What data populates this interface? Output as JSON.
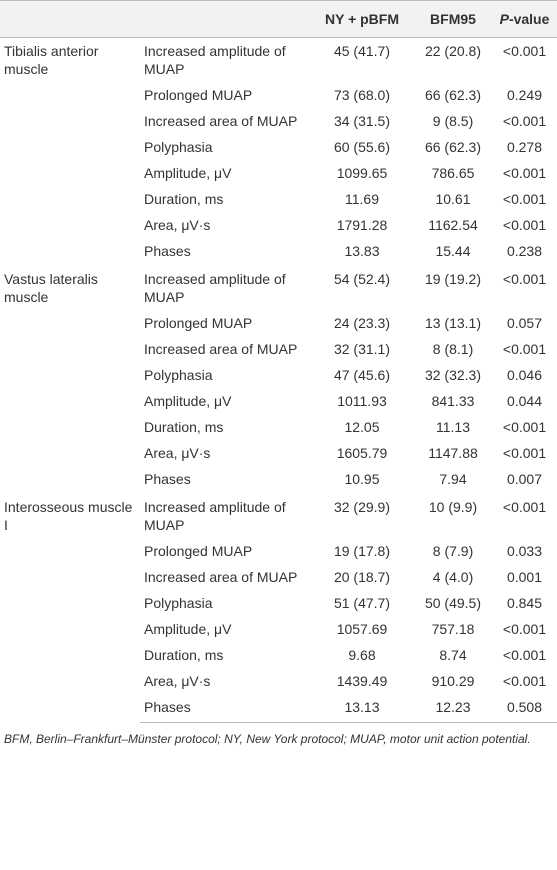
{
  "table": {
    "header": [
      "NY + pBFM",
      "BFM95"
    ],
    "header_p": [
      "P",
      "-value"
    ],
    "groups": [
      {
        "name": "Tibialis anterior muscle",
        "rows": [
          [
            "Increased amplitude of MUAP",
            "45 (41.7)",
            "22 (20.8)",
            "<0.001"
          ],
          [
            "Prolonged MUAP",
            "73 (68.0)",
            "66 (62.3)",
            "0.249"
          ],
          [
            "Increased area of MUAP",
            "34 (31.5)",
            "9 (8.5)",
            "<0.001"
          ],
          [
            "Polyphasia",
            "60 (55.6)",
            "66 (62.3)",
            "0.278"
          ],
          [
            "Amplitude, μV",
            "1099.65",
            "786.65",
            "<0.001"
          ],
          [
            "Duration, ms",
            "11.69",
            "10.61",
            "<0.001"
          ],
          [
            "Area, μV·s",
            "1791.28",
            "1162.54",
            "<0.001"
          ],
          [
            "Phases",
            "13.83",
            "15.44",
            "0.238"
          ]
        ]
      },
      {
        "name": "Vastus lateralis muscle",
        "rows": [
          [
            "Increased amplitude of MUAP",
            "54 (52.4)",
            "19 (19.2)",
            "<0.001"
          ],
          [
            "Prolonged MUAP",
            "24 (23.3)",
            "13 (13.1)",
            "0.057"
          ],
          [
            "Increased area of MUAP",
            "32 (31.1)",
            "8 (8.1)",
            "<0.001"
          ],
          [
            "Polyphasia",
            "47 (45.6)",
            "32 (32.3)",
            "0.046"
          ],
          [
            "Amplitude, μV",
            "1011.93",
            "841.33",
            "0.044"
          ],
          [
            "Duration, ms",
            "12.05",
            "11.13",
            "<0.001"
          ],
          [
            "Area, μV·s",
            "1605.79",
            "1147.88",
            "<0.001"
          ],
          [
            "Phases",
            "10.95",
            "7.94",
            "0.007"
          ]
        ]
      },
      {
        "name": "Interosseous muscle I",
        "rows": [
          [
            "Increased amplitude of MUAP",
            "32 (29.9)",
            "10 (9.9)",
            "<0.001"
          ],
          [
            "Prolonged MUAP",
            "19 (17.8)",
            "8 (7.9)",
            "0.033"
          ],
          [
            "Increased area of MUAP",
            "20 (18.7)",
            "4 (4.0)",
            "0.001"
          ],
          [
            "Polyphasia",
            "51 (47.7)",
            "50 (49.5)",
            "0.845"
          ],
          [
            "Amplitude, μV",
            "1057.69",
            "757.18",
            "<0.001"
          ],
          [
            "Duration, ms",
            "9.68",
            "8.74",
            "<0.001"
          ],
          [
            "Area, μV·s",
            "1439.49",
            "910.29",
            "<0.001"
          ],
          [
            "Phases",
            "13.13",
            "12.23",
            "0.508"
          ]
        ]
      }
    ],
    "footnote": "BFM, Berlin–Frankfurt–Münster protocol; NY, New York protocol; MUAP, motor unit action potential."
  }
}
